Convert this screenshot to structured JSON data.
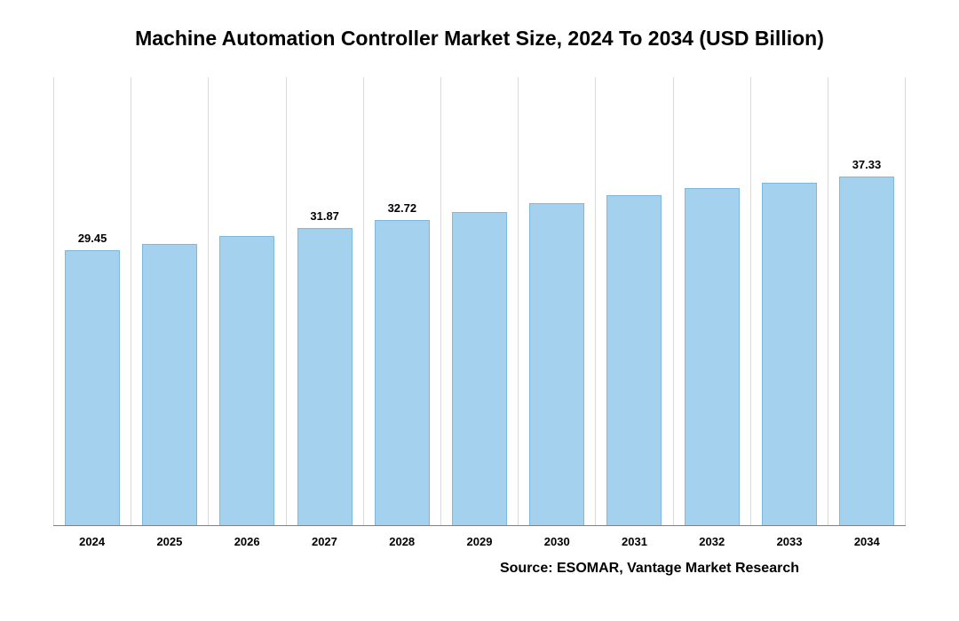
{
  "chart": {
    "type": "bar",
    "title": "Machine Automation Controller Market Size, 2024 To 2034 (USD Billion)",
    "title_fontsize": 23,
    "title_color": "#000000",
    "categories": [
      "2024",
      "2025",
      "2026",
      "2027",
      "2028",
      "2029",
      "2030",
      "2031",
      "2032",
      "2033",
      "2034"
    ],
    "values": [
      29.45,
      30.1,
      30.95,
      31.87,
      32.72,
      33.6,
      34.5,
      35.4,
      36.1,
      36.7,
      37.33
    ],
    "shown_value_labels": {
      "0": "29.45",
      "3": "31.87",
      "4": "32.72",
      "10": "37.33"
    },
    "bar_color": "#a4d1ed",
    "bar_border_color": "#7fb8de",
    "bar_width_pct": 72,
    "ylim": [
      0,
      48
    ],
    "grid_vertical_color": "#d9d9d9",
    "axis_line_color": "#808080",
    "background_color": "#ffffff",
    "x_label_fontsize": 13,
    "x_label_color": "#000000",
    "value_label_fontsize": 13,
    "value_label_color": "#000000",
    "source_text": "Source: ESOMAR, Vantage Market Research",
    "source_fontsize": 16,
    "source_color": "#000000"
  }
}
